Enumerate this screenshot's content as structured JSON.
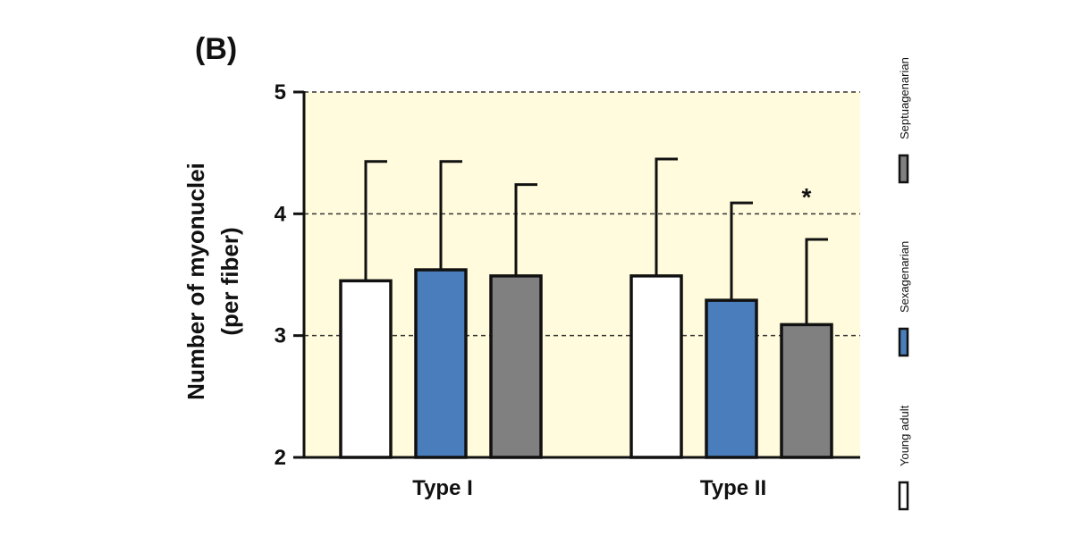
{
  "panel_label": "(B)",
  "chart_data": {
    "type": "bar",
    "title": "",
    "ylabel_line1": "Number of myonuclei",
    "ylabel_line2": "(per fiber)",
    "xlabel": "",
    "ylim": [
      2,
      5
    ],
    "yticks": [
      "2",
      "3",
      "4",
      "5"
    ],
    "ytick_values": [
      2,
      3,
      4,
      5
    ],
    "categories": [
      "Type I",
      "Type II"
    ],
    "series": [
      {
        "name": "Young adult",
        "color": "#ffffff",
        "values": [
          3.45,
          3.49
        ],
        "errors": [
          0.98,
          0.96
        ]
      },
      {
        "name": "Sexagenarian",
        "color": "#4a7dbb",
        "values": [
          3.54,
          3.29
        ],
        "errors": [
          0.89,
          0.8
        ]
      },
      {
        "name": "Septuagenarian",
        "color": "#808080",
        "values": [
          3.49,
          3.09
        ],
        "errors": [
          0.75,
          0.7
        ]
      }
    ],
    "annotations": [
      {
        "text": "*",
        "category": "Type II",
        "series": "Septuagenarian"
      }
    ],
    "grid": "horizontal dashed",
    "background": "#fffbdc",
    "legend_placement": "right, vertical"
  }
}
